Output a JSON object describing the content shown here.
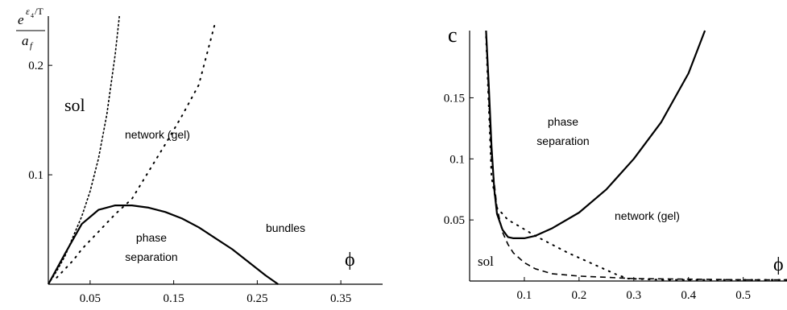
{
  "chart_data": [
    {
      "type": "line",
      "ylabel": {
        "base": "e",
        "exp_sym": "ε",
        "exp_sub": "4",
        "exp_tail": "/T",
        "denom_base": "a",
        "denom_sub": "f"
      },
      "xlabel": "ϕ",
      "xlim": [
        0.0,
        0.4
      ],
      "ylim": [
        0.0,
        0.245
      ],
      "xticks": [
        0.05,
        0.15,
        0.25,
        0.35
      ],
      "xtick_labels": [
        "0.05",
        "0.15",
        "0.25",
        "0.35"
      ],
      "yticks": [
        0.1,
        0.2
      ],
      "ytick_labels": [
        "0.1",
        "0.2"
      ],
      "annotations": [
        "sol",
        "network (gel)",
        "bundles",
        "phase",
        "separation"
      ],
      "series": [
        {
          "style": "short-dashed",
          "x": [
            0.0,
            0.01,
            0.02,
            0.03,
            0.04,
            0.05,
            0.06,
            0.07,
            0.08,
            0.085
          ],
          "y": [
            0.0,
            0.012,
            0.026,
            0.044,
            0.062,
            0.085,
            0.115,
            0.155,
            0.21,
            0.245
          ]
        },
        {
          "style": "dotted",
          "x": [
            0.01,
            0.02,
            0.03,
            0.04,
            0.05,
            0.06,
            0.07,
            0.08,
            0.09,
            0.1,
            0.12,
            0.14,
            0.16,
            0.18,
            0.2
          ],
          "y": [
            0.006,
            0.014,
            0.022,
            0.032,
            0.04,
            0.048,
            0.056,
            0.064,
            0.071,
            0.078,
            0.103,
            0.128,
            0.154,
            0.182,
            0.24
          ]
        },
        {
          "style": "solid",
          "x": [
            0.0,
            0.02,
            0.04,
            0.06,
            0.08,
            0.1,
            0.12,
            0.14,
            0.16,
            0.18,
            0.2,
            0.22,
            0.24,
            0.26,
            0.275
          ],
          "y": [
            0.0,
            0.028,
            0.055,
            0.068,
            0.072,
            0.072,
            0.07,
            0.066,
            0.06,
            0.052,
            0.042,
            0.032,
            0.02,
            0.008,
            0.0
          ]
        }
      ]
    },
    {
      "type": "line",
      "ylabel": "c",
      "xlabel": "ϕ",
      "xlim": [
        0.0,
        0.58
      ],
      "ylim": [
        0.0,
        0.205
      ],
      "xticks": [
        0.1,
        0.2,
        0.3,
        0.4,
        0.5
      ],
      "xtick_labels": [
        "0.1",
        "0.2",
        "0.3",
        "0.4",
        "0.5"
      ],
      "yticks": [
        0.05,
        0.1,
        0.15
      ],
      "ytick_labels": [
        "0.05",
        "0.1",
        "0.15"
      ],
      "annotations": [
        "phase",
        "separation",
        "network (gel)",
        "sol"
      ],
      "series": [
        {
          "style": "solid",
          "x": [
            0.03,
            0.035,
            0.04,
            0.045,
            0.05,
            0.06,
            0.07,
            0.08,
            0.1,
            0.12,
            0.15,
            0.2,
            0.25,
            0.3,
            0.35,
            0.4,
            0.43
          ],
          "y": [
            0.205,
            0.16,
            0.11,
            0.075,
            0.055,
            0.042,
            0.036,
            0.035,
            0.035,
            0.037,
            0.043,
            0.056,
            0.075,
            0.1,
            0.13,
            0.17,
            0.205
          ]
        },
        {
          "style": "dashed",
          "x": [
            0.03,
            0.035,
            0.04,
            0.05,
            0.06,
            0.07,
            0.08,
            0.1,
            0.12,
            0.15,
            0.2,
            0.25,
            0.3,
            0.4,
            0.5,
            0.58
          ],
          "y": [
            0.205,
            0.15,
            0.1,
            0.06,
            0.04,
            0.03,
            0.023,
            0.015,
            0.01,
            0.006,
            0.004,
            0.003,
            0.002,
            0.0015,
            0.001,
            0.001
          ]
        },
        {
          "style": "dotted",
          "x": [
            0.03,
            0.04,
            0.05,
            0.07,
            0.09,
            0.12,
            0.15,
            0.18,
            0.21,
            0.24,
            0.27,
            0.29,
            0.35,
            0.45,
            0.58
          ],
          "y": [
            0.2,
            0.085,
            0.06,
            0.05,
            0.045,
            0.037,
            0.03,
            0.023,
            0.017,
            0.011,
            0.005,
            0.002,
            0.001,
            0.001,
            0.001
          ]
        }
      ]
    }
  ]
}
